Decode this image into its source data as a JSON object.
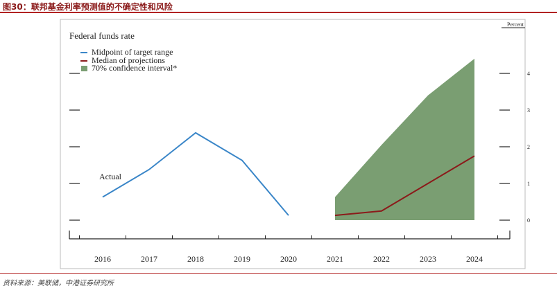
{
  "figure": {
    "title": "图30：联邦基金利率预测值的不确定性和风险",
    "source": "资料来源：美联储，中港证券研究所"
  },
  "chart_data": {
    "type": "line",
    "title": "Federal funds rate",
    "unit_label": "Percent",
    "legend": [
      "Midpoint of target range",
      "Median of projections",
      "70% confidence interval*"
    ],
    "legend_position": "top-left",
    "annotation": "Actual",
    "x_categories": [
      "2016",
      "2017",
      "2018",
      "2019",
      "2020",
      "2021",
      "2022",
      "2023",
      "2024"
    ],
    "y_ticks": [
      "0",
      "1",
      "2",
      "3",
      "4"
    ],
    "ylim": [
      0,
      4.5
    ],
    "grid": false,
    "series": [
      {
        "name": "Midpoint of target range",
        "color": "#3a86c8",
        "x": [
          2016,
          2017,
          2018,
          2019,
          2020
        ],
        "y": [
          0.63,
          1.38,
          2.38,
          1.63,
          0.13
        ]
      },
      {
        "name": "Median of projections",
        "color": "#8b1a1a",
        "x": [
          2021,
          2022,
          2023,
          2024
        ],
        "y": [
          0.13,
          0.25,
          1.0,
          1.75
        ]
      }
    ],
    "confidence_band": {
      "name": "70% confidence interval*",
      "color": "#7a9e72",
      "x": [
        2021,
        2022,
        2023,
        2024
      ],
      "lower": [
        0,
        0,
        0,
        0
      ],
      "upper": [
        0.63,
        2.05,
        3.4,
        4.4
      ]
    }
  }
}
